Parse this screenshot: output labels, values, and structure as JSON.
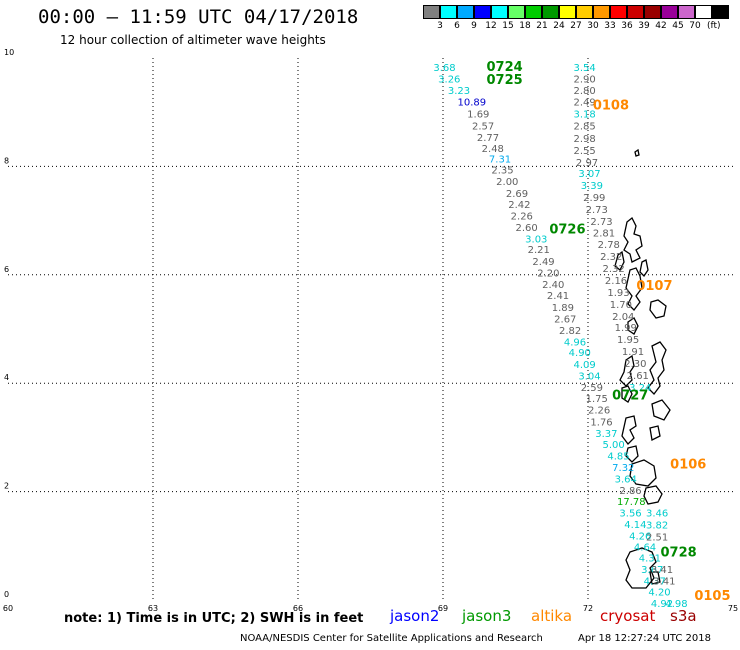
{
  "header": {
    "title": "00:00 – 11:59 UTC 04/17/2018",
    "subtitle": "12 hour collection of altimeter wave heights"
  },
  "legend": {
    "colors": [
      "#808080",
      "#00ffff",
      "#00aaff",
      "#0000ff",
      "#00ffff",
      "#66ff66",
      "#00cc00",
      "#009900",
      "#ffff00",
      "#ffcc00",
      "#ff9900",
      "#ff0000",
      "#cc0000",
      "#990000",
      "#990099",
      "#cc66cc",
      "#ffffff",
      "#000000"
    ],
    "labels": [
      "3",
      "6",
      "9",
      "12",
      "15",
      "18",
      "21",
      "24",
      "27",
      "30",
      "33",
      "36",
      "39",
      "42",
      "45",
      "70"
    ],
    "unit": "(ft)"
  },
  "axes": {
    "x_ticks": [
      "60",
      "63",
      "66",
      "69",
      "72",
      "75"
    ],
    "y_ticks": [
      "0",
      "2",
      "4",
      "6",
      "8",
      "10"
    ]
  },
  "tracks": [
    {
      "time": "0724",
      "color": "#008800",
      "pos": [
        69.9,
        9.76
      ]
    },
    {
      "time": "0725",
      "color": "#008800",
      "pos": [
        69.9,
        9.52
      ]
    },
    {
      "time": "0108",
      "color": "#ff8800",
      "pos": [
        72.1,
        9.05
      ]
    },
    {
      "time": "0726",
      "color": "#008800",
      "pos": [
        71.2,
        6.76
      ]
    },
    {
      "time": "0107",
      "color": "#ff8800",
      "pos": [
        73.0,
        5.72
      ]
    },
    {
      "time": "0727",
      "color": "#008800",
      "pos": [
        72.5,
        3.7
      ]
    },
    {
      "time": "0106",
      "color": "#ff8800",
      "pos": [
        73.7,
        2.43
      ]
    },
    {
      "time": "0728",
      "color": "#008800",
      "pos": [
        73.5,
        0.8
      ]
    },
    {
      "time": "0105",
      "color": "#ff8800",
      "pos": [
        74.2,
        0.0
      ]
    }
  ],
  "values": [
    {
      "v": "3.68",
      "c": "#00cccc",
      "pos": [
        68.8,
        9.76
      ]
    },
    {
      "v": "3.26",
      "c": "#00cccc",
      "pos": [
        68.9,
        9.55
      ]
    },
    {
      "v": "3.23",
      "c": "#00cccc",
      "pos": [
        69.1,
        9.34
      ]
    },
    {
      "v": "10.89",
      "c": "#0000cc",
      "pos": [
        69.3,
        9.12
      ]
    },
    {
      "v": "1.69",
      "c": "#606060",
      "pos": [
        69.5,
        8.9
      ]
    },
    {
      "v": "2.57",
      "c": "#606060",
      "pos": [
        69.6,
        8.68
      ]
    },
    {
      "v": "2.77",
      "c": "#606060",
      "pos": [
        69.7,
        8.47
      ]
    },
    {
      "v": "2.48",
      "c": "#606060",
      "pos": [
        69.8,
        8.27
      ]
    },
    {
      "v": "7.31",
      "c": "#00aaee",
      "pos": [
        69.95,
        8.07
      ]
    },
    {
      "v": "2.35",
      "c": "#606060",
      "pos": [
        70.0,
        7.87
      ]
    },
    {
      "v": "2.00",
      "c": "#606060",
      "pos": [
        70.1,
        7.66
      ]
    },
    {
      "v": "2.69",
      "c": "#606060",
      "pos": [
        70.3,
        7.44
      ]
    },
    {
      "v": "2.42",
      "c": "#606060",
      "pos": [
        70.35,
        7.23
      ]
    },
    {
      "v": "2.26",
      "c": "#606060",
      "pos": [
        70.4,
        7.02
      ]
    },
    {
      "v": "2.60",
      "c": "#606060",
      "pos": [
        70.5,
        6.81
      ]
    },
    {
      "v": "3.03",
      "c": "#00cccc",
      "pos": [
        70.7,
        6.6
      ]
    },
    {
      "v": "2.21",
      "c": "#606060",
      "pos": [
        70.75,
        6.4
      ]
    },
    {
      "v": "2.49",
      "c": "#606060",
      "pos": [
        70.85,
        6.18
      ]
    },
    {
      "v": "2.20",
      "c": "#606060",
      "pos": [
        70.95,
        5.97
      ]
    },
    {
      "v": "2.40",
      "c": "#606060",
      "pos": [
        71.05,
        5.76
      ]
    },
    {
      "v": "2.41",
      "c": "#606060",
      "pos": [
        71.15,
        5.55
      ]
    },
    {
      "v": "1.89",
      "c": "#606060",
      "pos": [
        71.25,
        5.33
      ]
    },
    {
      "v": "2.67",
      "c": "#606060",
      "pos": [
        71.3,
        5.12
      ]
    },
    {
      "v": "2.82",
      "c": "#606060",
      "pos": [
        71.4,
        4.91
      ]
    },
    {
      "v": "4.96",
      "c": "#00cccc",
      "pos": [
        71.5,
        4.7
      ]
    },
    {
      "v": "4.90",
      "c": "#00cccc",
      "pos": [
        71.6,
        4.5
      ]
    },
    {
      "v": "4.09",
      "c": "#00cccc",
      "pos": [
        71.7,
        4.28
      ]
    },
    {
      "v": "3.04",
      "c": "#00cccc",
      "pos": [
        71.8,
        4.07
      ]
    },
    {
      "v": "2.59",
      "c": "#606060",
      "pos": [
        71.85,
        3.86
      ]
    },
    {
      "v": "1.75",
      "c": "#606060",
      "pos": [
        71.95,
        3.65
      ]
    },
    {
      "v": "2.26",
      "c": "#606060",
      "pos": [
        72.0,
        3.44
      ]
    },
    {
      "v": "1.76",
      "c": "#606060",
      "pos": [
        72.05,
        3.22
      ]
    },
    {
      "v": "3.37",
      "c": "#00cccc",
      "pos": [
        72.15,
        3.01
      ]
    },
    {
      "v": "5.00",
      "c": "#00cccc",
      "pos": [
        72.3,
        2.8
      ]
    },
    {
      "v": "4.85",
      "c": "#00cccc",
      "pos": [
        72.4,
        2.59
      ]
    },
    {
      "v": "7.32",
      "c": "#00aaee",
      "pos": [
        72.5,
        2.38
      ]
    },
    {
      "v": "3.64",
      "c": "#00cccc",
      "pos": [
        72.55,
        2.17
      ]
    },
    {
      "v": "2.86",
      "c": "#606060",
      "pos": [
        72.65,
        1.96
      ]
    },
    {
      "v": "17.78",
      "c": "#00aa00",
      "pos": [
        72.6,
        1.75
      ]
    },
    {
      "v": "3.56",
      "c": "#00cccc",
      "pos": [
        72.65,
        1.54
      ]
    },
    {
      "v": "4.14",
      "c": "#00cccc",
      "pos": [
        72.75,
        1.33
      ]
    },
    {
      "v": "4.26",
      "c": "#00cccc",
      "pos": [
        72.85,
        1.12
      ]
    },
    {
      "v": "4.64",
      "c": "#00cccc",
      "pos": [
        72.95,
        0.91
      ]
    },
    {
      "v": "4.31",
      "c": "#00cccc",
      "pos": [
        73.05,
        0.71
      ]
    },
    {
      "v": "3.67",
      "c": "#00cccc",
      "pos": [
        73.1,
        0.5
      ]
    },
    {
      "v": "4.37",
      "c": "#00cccc",
      "pos": [
        73.15,
        0.29
      ]
    },
    {
      "v": "4.20",
      "c": "#00cccc",
      "pos": [
        73.25,
        0.08
      ]
    },
    {
      "v": "4.92",
      "c": "#00cccc",
      "pos": [
        73.3,
        -0.13
      ]
    },
    {
      "v": "4.98",
      "c": "#00cccc",
      "pos": [
        73.6,
        -0.13
      ]
    },
    {
      "v": "3.54",
      "c": "#00cccc",
      "pos": [
        71.7,
        9.76
      ]
    },
    {
      "v": "2.90",
      "c": "#606060",
      "pos": [
        71.7,
        9.55
      ]
    },
    {
      "v": "2.80",
      "c": "#606060",
      "pos": [
        71.7,
        9.34
      ]
    },
    {
      "v": "2.49",
      "c": "#606060",
      "pos": [
        71.7,
        9.12
      ]
    },
    {
      "v": "3.18",
      "c": "#00cccc",
      "pos": [
        71.7,
        8.9
      ]
    },
    {
      "v": "2.85",
      "c": "#606060",
      "pos": [
        71.7,
        8.68
      ]
    },
    {
      "v": "2.98",
      "c": "#606060",
      "pos": [
        71.7,
        8.45
      ]
    },
    {
      "v": "2.55",
      "c": "#606060",
      "pos": [
        71.7,
        8.23
      ]
    },
    {
      "v": "2.97",
      "c": "#606060",
      "pos": [
        71.75,
        8.01
      ]
    },
    {
      "v": "3.07",
      "c": "#00cccc",
      "pos": [
        71.8,
        7.8
      ]
    },
    {
      "v": "3.39",
      "c": "#00cccc",
      "pos": [
        71.85,
        7.58
      ]
    },
    {
      "v": "2.99",
      "c": "#606060",
      "pos": [
        71.9,
        7.36
      ]
    },
    {
      "v": "2.73",
      "c": "#606060",
      "pos": [
        71.95,
        7.14
      ]
    },
    {
      "v": "2.73",
      "c": "#606060",
      "pos": [
        72.05,
        6.92
      ]
    },
    {
      "v": "2.81",
      "c": "#606060",
      "pos": [
        72.1,
        6.71
      ]
    },
    {
      "v": "2.78",
      "c": "#606060",
      "pos": [
        72.2,
        6.49
      ]
    },
    {
      "v": "2.32",
      "c": "#606060",
      "pos": [
        72.25,
        6.27
      ]
    },
    {
      "v": "2.32",
      "c": "#606060",
      "pos": [
        72.3,
        6.05
      ]
    },
    {
      "v": "2.16",
      "c": "#606060",
      "pos": [
        72.35,
        5.83
      ]
    },
    {
      "v": "1.93",
      "c": "#606060",
      "pos": [
        72.4,
        5.61
      ]
    },
    {
      "v": "1.70",
      "c": "#606060",
      "pos": [
        72.45,
        5.39
      ]
    },
    {
      "v": "2.04",
      "c": "#606060",
      "pos": [
        72.5,
        5.17
      ]
    },
    {
      "v": "1.99",
      "c": "#606060",
      "pos": [
        72.55,
        4.96
      ]
    },
    {
      "v": "1.95",
      "c": "#606060",
      "pos": [
        72.6,
        4.74
      ]
    },
    {
      "v": "1.91",
      "c": "#606060",
      "pos": [
        72.7,
        4.52
      ]
    },
    {
      "v": "2.30",
      "c": "#606060",
      "pos": [
        72.75,
        4.3
      ]
    },
    {
      "v": "2.61",
      "c": "#606060",
      "pos": [
        72.8,
        4.08
      ]
    },
    {
      "v": "3.24",
      "c": "#00cccc",
      "pos": [
        72.85,
        3.86
      ]
    },
    {
      "v": "3.46",
      "c": "#00cccc",
      "pos": [
        73.2,
        1.54
      ]
    },
    {
      "v": "3.82",
      "c": "#00cccc",
      "pos": [
        73.2,
        1.32
      ]
    },
    {
      "v": "2.51",
      "c": "#606060",
      "pos": [
        73.2,
        1.1
      ]
    },
    {
      "v": "3.41",
      "c": "#606060",
      "pos": [
        73.3,
        0.5
      ]
    },
    {
      "v": "3.41",
      "c": "#606060",
      "pos": [
        73.35,
        0.29
      ]
    }
  ],
  "footer": {
    "note": "note: 1) Time is in UTC; 2) SWH is in feet",
    "satellites": [
      {
        "name": "jason2",
        "color": "#0000ff"
      },
      {
        "name": "jason3",
        "color": "#009900"
      },
      {
        "name": "altika",
        "color": "#ff8800"
      },
      {
        "name": "cryosat",
        "color": "#cc0000"
      },
      {
        "name": "s3a",
        "color": "#990000"
      }
    ],
    "credit": "NOAA/NESDIS Center for Satellite Applications and Research",
    "timestamp": "Apr 18 12:27:24 UTC 2018"
  }
}
